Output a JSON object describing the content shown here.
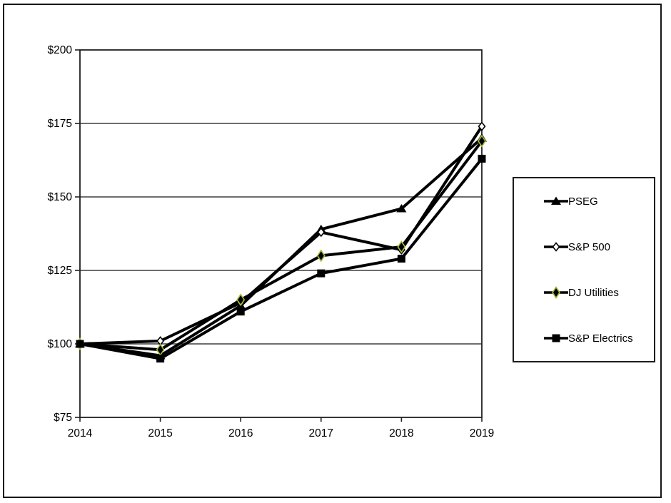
{
  "window": {
    "background_color": "#ffffff",
    "frame_border_color": "#161616"
  },
  "chart_data": {
    "type": "line",
    "title": "",
    "xlabel": "",
    "ylabel": "",
    "x": [
      2014,
      2015,
      2016,
      2017,
      2018,
      2019
    ],
    "x_tick_labels": [
      "2014",
      "2015",
      "2016",
      "2017",
      "2018",
      "2019"
    ],
    "y_ticks": [
      75,
      100,
      125,
      150,
      175,
      200
    ],
    "y_tick_labels": [
      "$75",
      "$100",
      "$125",
      "$150",
      "$175",
      "$200"
    ],
    "ylim": [
      75,
      200
    ],
    "grid": "horizontal",
    "plot_frame": true,
    "line_color": "#000000",
    "gridline_color": "#3d3d3d",
    "axis_color": "#1f1f1f",
    "legend_position": "right-box",
    "series": [
      {
        "name": "PSEG",
        "marker": "filled-triangle",
        "line_color": "#000000",
        "marker_fill": "#000000",
        "marker_outline": "#000000",
        "values": [
          100,
          96,
          113,
          139,
          146,
          170
        ]
      },
      {
        "name": "S&P 500",
        "marker": "open-diamond",
        "line_color": "#000000",
        "marker_fill": "#ffffff",
        "marker_outline": "#000000",
        "values": [
          100,
          101,
          114,
          138,
          132,
          174
        ]
      },
      {
        "name": "DJ Utilities",
        "marker": "filled-diamond",
        "line_color": "#000000",
        "marker_fill": "#000000",
        "marker_outline": "#a8bc34",
        "values": [
          100,
          98,
          115,
          130,
          133,
          169
        ]
      },
      {
        "name": "S&P Electrics",
        "marker": "filled-square",
        "line_color": "#000000",
        "marker_fill": "#000000",
        "marker_outline": "#000000",
        "values": [
          100,
          95,
          111,
          124,
          129,
          163
        ]
      }
    ]
  }
}
